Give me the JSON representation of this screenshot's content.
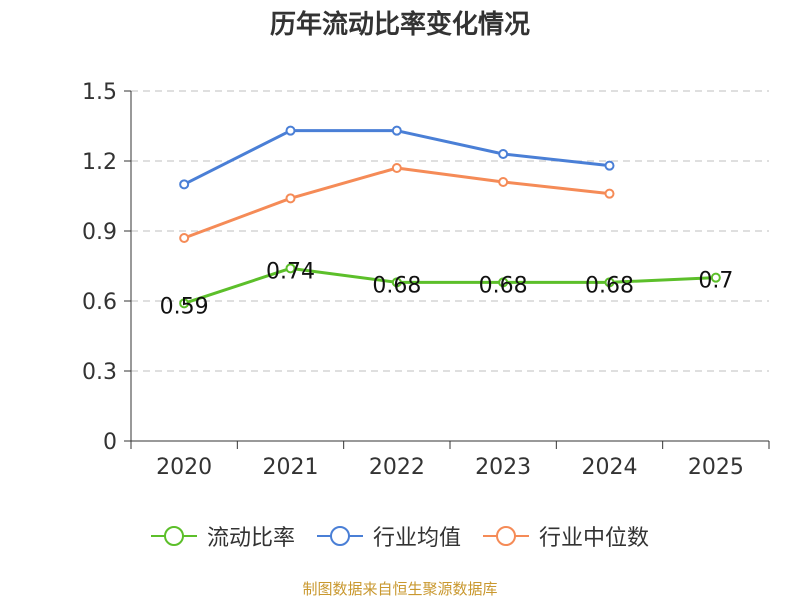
{
  "chart_data": {
    "type": "line",
    "title": "历年流动比率变化情况",
    "categories": [
      "2020",
      "2021",
      "2022",
      "2023",
      "2024",
      "2025"
    ],
    "ylim": [
      0,
      1.5
    ],
    "yticks": [
      "0",
      "0.3",
      "0.6",
      "0.9",
      "1.2",
      "1.5"
    ],
    "grid": true,
    "legend_position": "bottom",
    "series": [
      {
        "name": "流动比率",
        "color": "#5cbf2a",
        "values": [
          0.59,
          0.74,
          0.68,
          0.68,
          0.68,
          0.7
        ],
        "labels": [
          "0.59",
          "0.74",
          "0.68",
          "0.68",
          "0.68",
          "0.7"
        ]
      },
      {
        "name": "行业均值",
        "color": "#4a7fd6",
        "values": [
          1.1,
          1.33,
          1.33,
          1.23,
          1.18,
          null
        ]
      },
      {
        "name": "行业中位数",
        "color": "#f58b57",
        "values": [
          0.87,
          1.04,
          1.17,
          1.11,
          1.06,
          null
        ]
      }
    ]
  },
  "source": "制图数据来自恒生聚源数据库"
}
